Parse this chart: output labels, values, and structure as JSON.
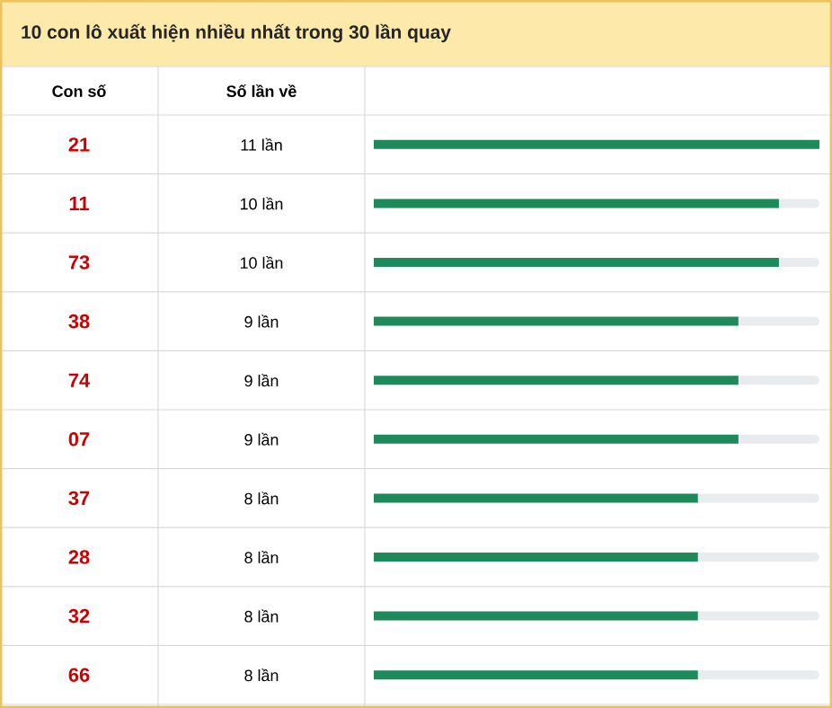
{
  "chart_data": {
    "type": "bar",
    "orientation": "horizontal",
    "title": "10 con lô xuất hiện nhiều nhất trong 30 lần quay",
    "annotations": [
      "Con số",
      "Số lần về"
    ],
    "categories": [
      "21",
      "11",
      "73",
      "38",
      "74",
      "07",
      "37",
      "28",
      "32",
      "66"
    ],
    "values": [
      11,
      10,
      10,
      9,
      9,
      9,
      8,
      8,
      8,
      8
    ],
    "value_labels": [
      "11 lần",
      "10 lần",
      "10 lần",
      "9 lần",
      "9 lần",
      "9 lần",
      "8 lần",
      "8 lần",
      "8 lần",
      "8 lần"
    ],
    "color": "#1e8a5a",
    "xlim": [
      0,
      11
    ],
    "tick_labels": "y"
  }
}
